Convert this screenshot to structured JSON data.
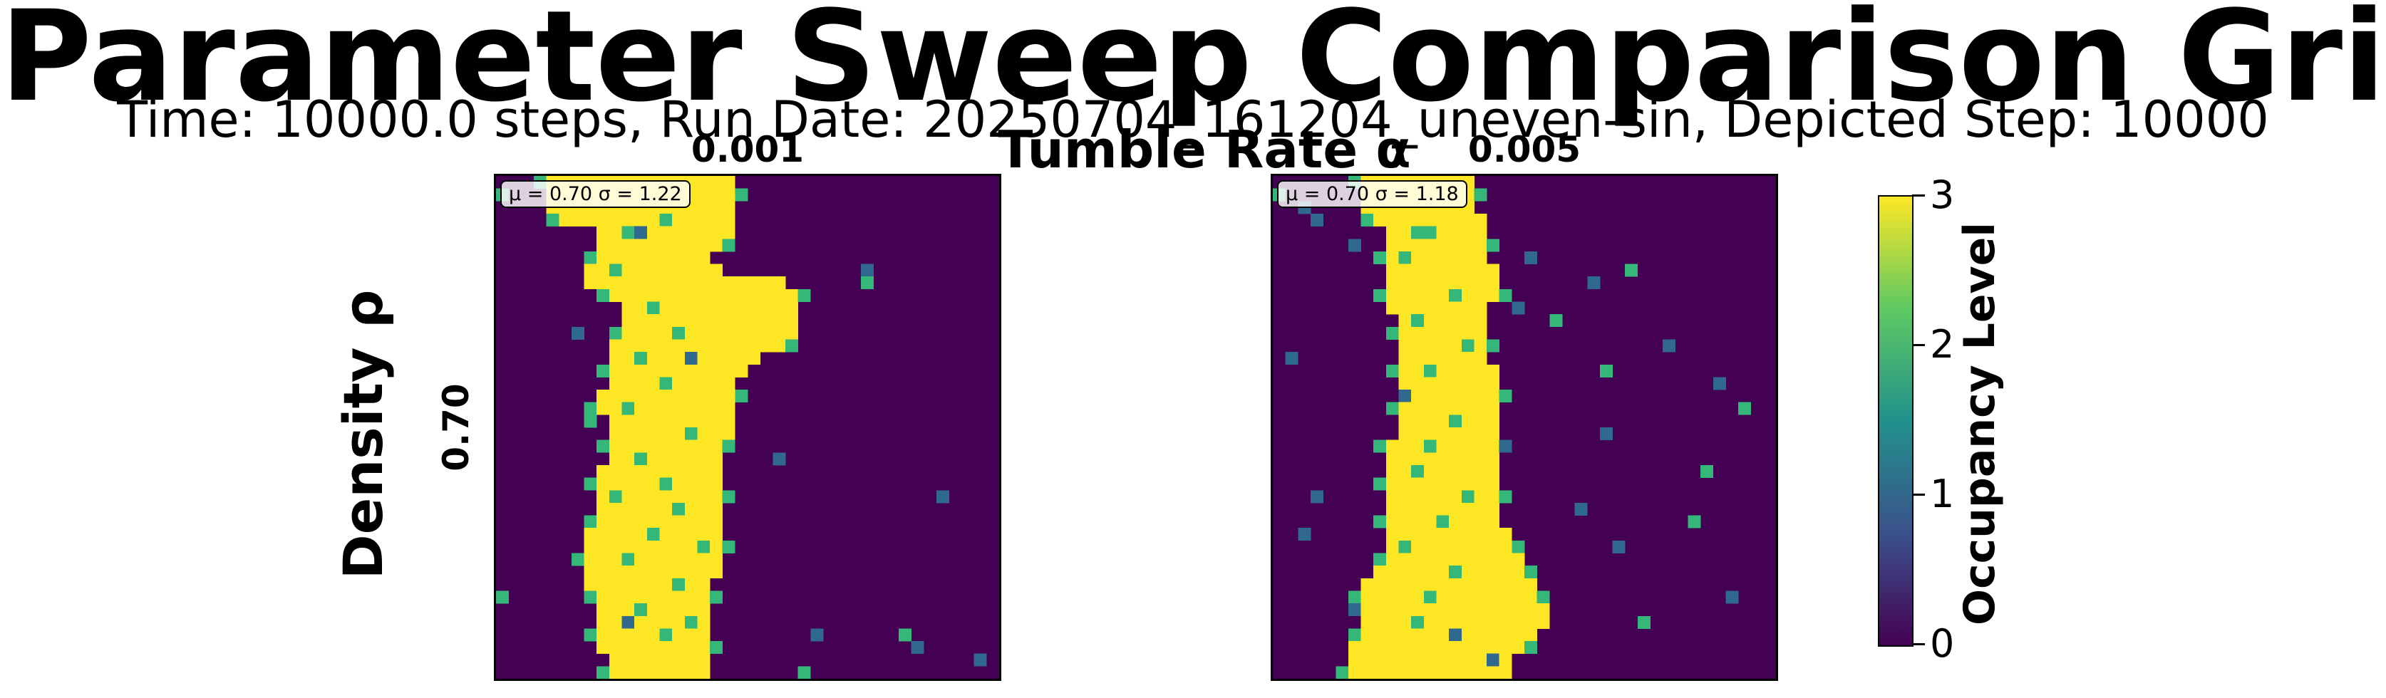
{
  "figure": {
    "title": "Parameter Sweep Comparison Grid",
    "subtitle": "Time: 10000.0 steps, Run Date: 20250704_161204_uneven-sin, Depicted Step: 10000",
    "supxlabel": "Tumble Rate α",
    "supylabel": "Density ρ"
  },
  "chart_data": {
    "type": "heatmap",
    "grid_shape": [
      40,
      40
    ],
    "colormap": "viridis",
    "colorbar": {
      "label": "Occupancy Level",
      "range": [
        0,
        3
      ],
      "ticks": [
        0,
        1,
        2,
        3
      ]
    },
    "colors": {
      "0": "#440154",
      "1": "#31688e",
      "2": "#35b779",
      "3": "#fde725"
    },
    "row_labels": [
      "0.70"
    ],
    "columns": [
      {
        "label": "0.001",
        "stats": "μ = 0.70  σ = 1.22",
        "band": {
          "left": [
            4,
            4,
            4,
            5,
            8,
            8,
            8,
            7,
            7,
            9,
            10,
            10,
            10,
            9,
            9,
            9,
            9,
            8,
            8,
            9,
            9,
            9,
            9,
            8,
            8,
            8,
            8,
            8,
            7,
            7,
            7,
            7,
            7,
            8,
            8,
            8,
            8,
            8,
            9,
            9
          ],
          "right": [
            18,
            18,
            18,
            18,
            18,
            17,
            16,
            17,
            22,
            23,
            23,
            23,
            23,
            22,
            20,
            19,
            18,
            18,
            18,
            18,
            18,
            17,
            17,
            17,
            17,
            17,
            17,
            17,
            17,
            17,
            17,
            17,
            16,
            16,
            16,
            16,
            16,
            16,
            16,
            16
          ],
          "holes": [
            [
              3,
              13
            ],
            [
              4,
              10
            ],
            [
              7,
              9
            ],
            [
              10,
              12
            ],
            [
              12,
              14
            ],
            [
              14,
              11
            ],
            [
              16,
              13
            ],
            [
              18,
              10
            ],
            [
              20,
              15
            ],
            [
              22,
              11
            ],
            [
              24,
              13
            ],
            [
              25,
              9
            ],
            [
              26,
              14
            ],
            [
              28,
              12
            ],
            [
              29,
              16
            ],
            [
              30,
              10
            ],
            [
              32,
              14
            ],
            [
              34,
              11
            ],
            [
              35,
              15
            ],
            [
              36,
              13
            ]
          ],
          "scatter": [
            [
              1,
              0
            ],
            [
              4,
              11
            ],
            [
              7,
              29
            ],
            [
              8,
              29
            ],
            [
              12,
              6
            ],
            [
              14,
              15
            ],
            [
              19,
              7
            ],
            [
              22,
              22
            ],
            [
              25,
              35
            ],
            [
              33,
              0
            ],
            [
              35,
              10
            ],
            [
              36,
              25
            ],
            [
              36,
              32
            ],
            [
              37,
              33
            ],
            [
              38,
              38
            ],
            [
              39,
              24
            ]
          ]
        }
      },
      {
        "label": "0.005",
        "stats": "μ = 0.70  σ = 1.18",
        "band": {
          "left": [
            7,
            7,
            7,
            8,
            9,
            9,
            9,
            9,
            9,
            9,
            9,
            10,
            10,
            10,
            10,
            10,
            10,
            10,
            10,
            10,
            10,
            9,
            9,
            9,
            9,
            9,
            9,
            9,
            9,
            9,
            9,
            8,
            7,
            7,
            7,
            7,
            7,
            6,
            6,
            6
          ],
          "right": [
            15,
            15,
            15,
            16,
            16,
            16,
            16,
            17,
            17,
            17,
            16,
            16,
            16,
            16,
            16,
            17,
            17,
            17,
            17,
            17,
            17,
            17,
            17,
            17,
            17,
            17,
            17,
            17,
            18,
            18,
            19,
            20,
            20,
            20,
            21,
            21,
            20,
            19,
            18,
            18
          ],
          "holes": [
            [
              4,
              12
            ],
            [
              6,
              10
            ],
            [
              9,
              14
            ],
            [
              11,
              11
            ],
            [
              13,
              15
            ],
            [
              15,
              12
            ],
            [
              17,
              10
            ],
            [
              19,
              14
            ],
            [
              21,
              12
            ],
            [
              23,
              11
            ],
            [
              25,
              15
            ],
            [
              27,
              13
            ],
            [
              29,
              10
            ],
            [
              31,
              14
            ],
            [
              33,
              12
            ],
            [
              35,
              11
            ]
          ],
          "scatter": [
            [
              1,
              0
            ],
            [
              2,
              2
            ],
            [
              3,
              3
            ],
            [
              4,
              11
            ],
            [
              5,
              6
            ],
            [
              6,
              20
            ],
            [
              7,
              28
            ],
            [
              8,
              25
            ],
            [
              10,
              19
            ],
            [
              11,
              22
            ],
            [
              13,
              31
            ],
            [
              14,
              1
            ],
            [
              15,
              26
            ],
            [
              16,
              35
            ],
            [
              17,
              10
            ],
            [
              18,
              37
            ],
            [
              20,
              26
            ],
            [
              21,
              18
            ],
            [
              23,
              34
            ],
            [
              25,
              3
            ],
            [
              26,
              24
            ],
            [
              27,
              33
            ],
            [
              28,
              2
            ],
            [
              29,
              27
            ],
            [
              31,
              20
            ],
            [
              33,
              36
            ],
            [
              34,
              6
            ],
            [
              35,
              29
            ],
            [
              36,
              14
            ],
            [
              38,
              17
            ]
          ]
        }
      }
    ]
  }
}
